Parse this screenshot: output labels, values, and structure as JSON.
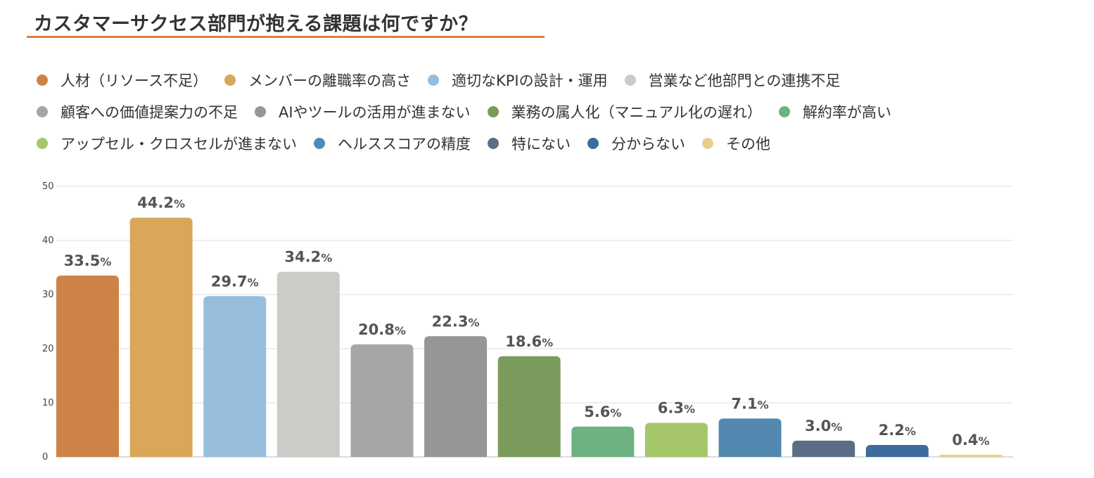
{
  "chart_data": {
    "type": "bar",
    "title": "カスタマーサクセス部門が抱える課題は何ですか？",
    "xlabel": "",
    "ylabel": "",
    "ylim": [
      0,
      50
    ],
    "yticks": [
      0,
      10,
      20,
      30,
      40,
      50
    ],
    "grid": true,
    "legend_position": "top",
    "unit": "%",
    "categories": [
      "人材（リソース不足）",
      "メンバーの離職率の高さ",
      "適切なKPIの設計・運用",
      "営業など他部門との連携不足",
      "顧客への価値提案力の不足",
      "AIやツールの活用が進まない",
      "業務の属人化（マニュアル化の遅れ）",
      "解約率が高い",
      "アップセル・クロスセルが進まない",
      "ヘルススコアの精度",
      "特にない",
      "分からない",
      "その他"
    ],
    "values": [
      33.5,
      44.2,
      29.7,
      34.2,
      20.8,
      22.3,
      18.6,
      5.6,
      6.3,
      7.1,
      3.0,
      2.2,
      0.4
    ],
    "value_labels": [
      "33.5",
      "44.2",
      "29.7",
      "34.2",
      "20.8",
      "22.3",
      "18.6",
      "5.6",
      "6.3",
      "7.1",
      "3.0",
      "2.2",
      "0.4"
    ],
    "colors": [
      "#cd8346",
      "#d9a75a",
      "#97bddc",
      "#cbccc8",
      "#a5a6a5",
      "#959695",
      "#7b9b5c",
      "#6fb282",
      "#a5c76a",
      "#5389b0",
      "#5a6e89",
      "#3e6a9e",
      "#e6d08c"
    ]
  }
}
